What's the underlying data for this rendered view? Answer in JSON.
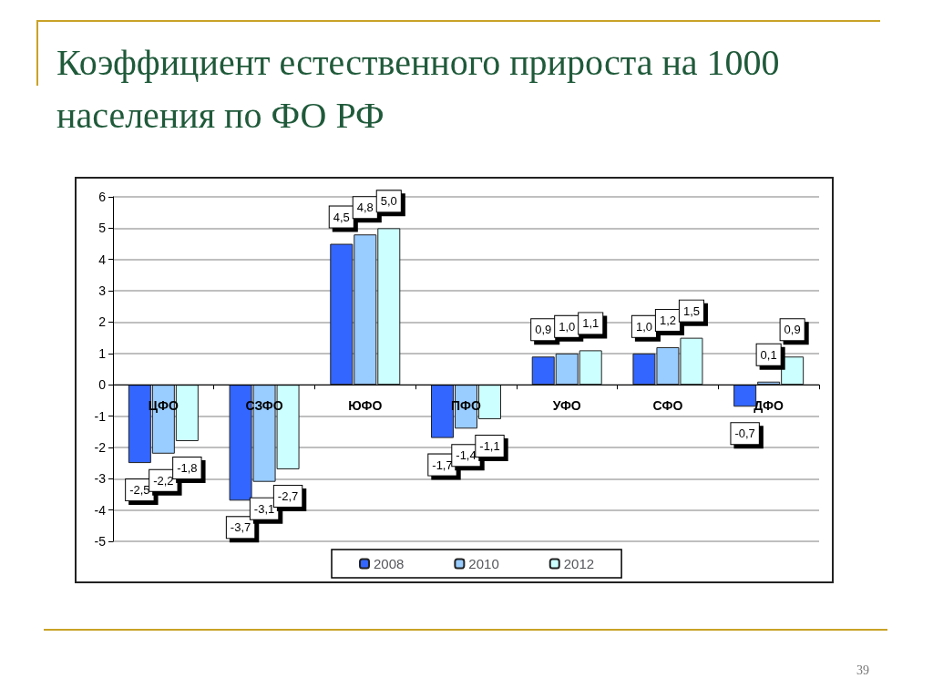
{
  "chart_data": {
    "type": "bar",
    "title": "Коэффициент естественного прироста на 1000 населения по ФО РФ",
    "categories": [
      "ЦФО",
      "СЗФО",
      "ЮФО",
      "ПФО",
      "УФО",
      "СФО",
      "ДФО"
    ],
    "series": [
      {
        "name": "2008",
        "color": "#3366ff",
        "values": [
          -2.5,
          -3.7,
          4.5,
          -1.7,
          0.9,
          1.0,
          -0.7
        ],
        "value_labels": [
          "-2,5",
          "-3,7",
          "4,5",
          "-1,7",
          "0,9",
          "1,0",
          "-0,7"
        ]
      },
      {
        "name": "2010",
        "color": "#99ccff",
        "values": [
          -2.2,
          -3.1,
          4.8,
          -1.4,
          1.0,
          1.2,
          0.1
        ],
        "value_labels": [
          "-2,2",
          "-3,1",
          "4,8",
          "-1,4",
          "1,0",
          "1,2",
          "0,1"
        ]
      },
      {
        "name": "2012",
        "color": "#ccffff",
        "values": [
          -1.8,
          -2.7,
          5.0,
          -1.1,
          1.1,
          1.5,
          0.9
        ],
        "value_labels": [
          "-1,8",
          "-2,7",
          "5,0",
          "-1,1",
          "1,1",
          "1,5",
          "0,9"
        ]
      }
    ],
    "ylim": [
      -5,
      6
    ],
    "yticks": [
      -5,
      -4,
      -3,
      -2,
      -1,
      0,
      1,
      2,
      3,
      4,
      5,
      6
    ],
    "grid": "y",
    "legend": "bottom",
    "annotations": [
      "39"
    ]
  }
}
